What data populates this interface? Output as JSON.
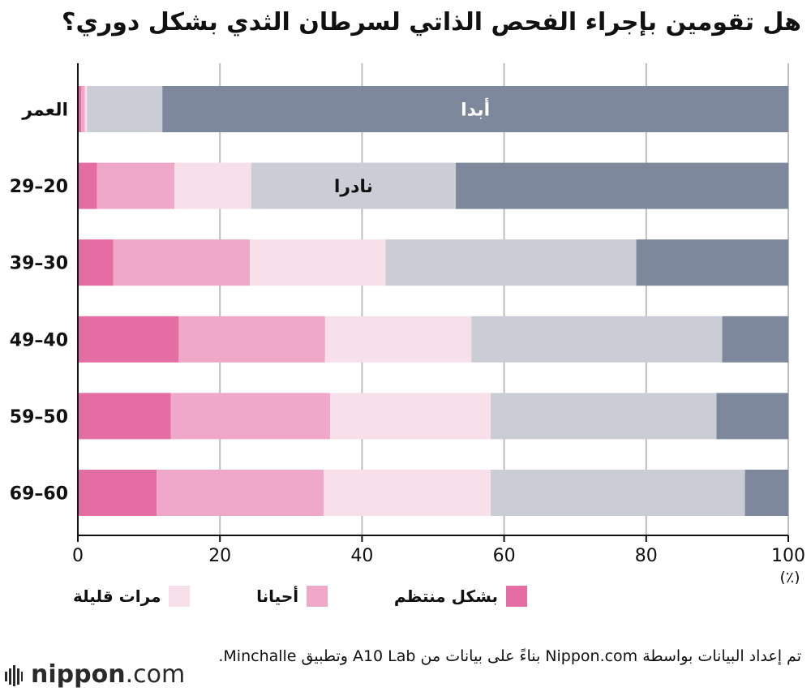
{
  "title": "هل تقومين بإجراء الفحص الذاتي لسرطان الثدي بشكل دوري؟",
  "chart_data": {
    "type": "bar",
    "orientation": "horizontal",
    "stacked": true,
    "categories": [
      "العمر",
      "29–20",
      "39–30",
      "49–40",
      "59–50",
      "69–60"
    ],
    "series": [
      {
        "name": "بشكل منتظم",
        "color": "#e46ea3",
        "values": [
          0.5,
          2.7,
          5.0,
          14.2,
          13.1,
          11.1
        ]
      },
      {
        "name": "أحيانا",
        "color": "#f0a8c9",
        "values": [
          0.5,
          10.9,
          19.2,
          20.6,
          22.4,
          23.5
        ]
      },
      {
        "name": "مرات قليلة",
        "color": "#f8e0ea",
        "values": [
          0.3,
          10.8,
          19.1,
          20.6,
          22.6,
          23.5
        ]
      },
      {
        "name": "نادرا",
        "color": "#cacdd5",
        "values": [
          10.6,
          28.8,
          35.3,
          35.3,
          31.8,
          35.8
        ]
      },
      {
        "name": "أبدا",
        "color": "#7e889c",
        "values": [
          88.1,
          46.8,
          21.4,
          9.3,
          10.1,
          6.1
        ]
      }
    ],
    "bar_labels": [
      {
        "category": "العمر",
        "series": "أبدا",
        "text": "أبدا"
      },
      {
        "category": "29–20",
        "series": "نادرا",
        "text": "نادرا"
      }
    ],
    "xlim": [
      0,
      100
    ],
    "xticks": [
      0,
      20,
      40,
      60,
      80,
      100
    ],
    "xunit": "(٪)",
    "grid": true,
    "legend_position": "bottom",
    "legend_series": [
      "بشكل منتظم",
      "أحيانا",
      "مرات قليلة"
    ]
  },
  "source_note": "تم إعداد البيانات بواسطة Nippon.com بناءً على بيانات من A10 Lab وتطبيق Minchalle.",
  "brand": {
    "name": "nippon",
    "suffix": ".com"
  }
}
